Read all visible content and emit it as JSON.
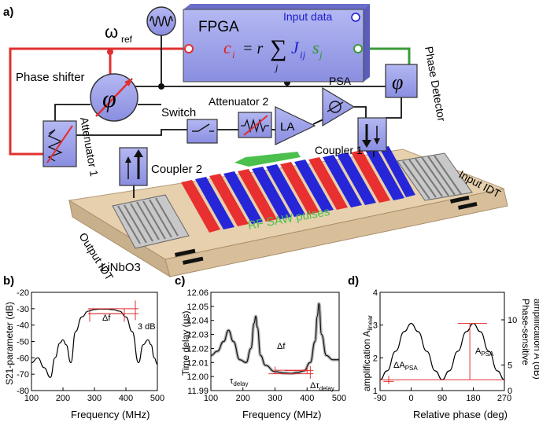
{
  "panel_labels": {
    "a": "a)",
    "b": "b)",
    "c": "c)",
    "d": "d)"
  },
  "schematic": {
    "fpga": {
      "title": "FPGA",
      "input_data": "Input data",
      "eq_c": "c",
      "eq_ci": "i",
      "eq_mid": "= r",
      "eq_sum": "∑",
      "eq_j": "j",
      "eq_J": "J",
      "eq_Jij": "ij",
      "eq_s": "s",
      "eq_sj": "j"
    },
    "omega_ref": "ω",
    "omega_ref_sub": "ref",
    "phase_shifter": "Phase shifter",
    "phase_detector": "Phase Detector",
    "psa": "PSA",
    "switch": "Switch",
    "attenuator2": "Attenuator 2",
    "attenuator1": "Attenuator 1",
    "la": "LA",
    "coupler1": "Coupler 1",
    "coupler2": "Coupler 2",
    "output_idt": "Output IDT",
    "input_idt": "Input IDT",
    "rf_saw": "RF SAW pulses",
    "substrate": "LiNbO3",
    "phi_symbol": "φ",
    "colors": {
      "box": "#9a9ee8",
      "red_line": "#e03030",
      "green_line": "#3a9a3a",
      "substrate": "#e8d2b0",
      "red_pulse": "#ee3030",
      "blue_pulse": "#2a2ae0"
    }
  },
  "charts": {
    "b": {
      "ylabel": "S21-parameter (dB)",
      "xlabel": "Frequency (MHz)",
      "ann_df": "Δf",
      "ann_3db": "3 dB"
    },
    "c": {
      "ylabel": "Time delay (μs)",
      "xlabel": "Frequency (MHz)",
      "ann_df": "Δf",
      "ann_tau": "τ",
      "ann_tau_sub": "delay",
      "ann_dtau": "Δτ",
      "ann_dtau_sub": "delay"
    },
    "d": {
      "ylabel_left": "amplification A",
      "ylabel_left_sub": "linear",
      "ylabel_right1": "Phase-sensitive",
      "ylabel_right2": "amplification A (dB)",
      "xlabel": "Relative phase (deg)",
      "ann_dapsa": "ΔA",
      "ann_dapsa_sub": "PSA",
      "ann_apsa": "A",
      "ann_apsa_sub": "PSA"
    }
  },
  "chart_data": [
    {
      "type": "line",
      "title": "",
      "xlabel": "Frequency (MHz)",
      "ylabel": "S21-parameter (dB)",
      "xlim": [
        100,
        500
      ],
      "ylim": [
        -80,
        -20
      ],
      "xticks": [
        "100",
        "200",
        "300",
        "400",
        "500"
      ],
      "yticks": [
        "-80",
        "-70",
        "-60",
        "-50",
        "-40",
        "-30",
        "-20"
      ],
      "x": [
        100,
        120,
        140,
        160,
        175,
        190,
        200,
        210,
        225,
        240,
        260,
        280,
        300,
        320,
        340,
        360,
        380,
        400,
        420,
        440,
        455,
        470,
        480,
        490,
        500
      ],
      "y": [
        -63,
        -60,
        -66,
        -72,
        -60,
        -51,
        -49,
        -52,
        -63,
        -44,
        -35,
        -31.5,
        -30.5,
        -30.2,
        -30.3,
        -30.6,
        -31.5,
        -35,
        -44,
        -63,
        -52,
        -49,
        -52,
        -60,
        -64
      ]
    },
    {
      "type": "line",
      "title": "",
      "xlabel": "Frequency (MHz)",
      "ylabel": "Time delay (μs)",
      "xlim": [
        100,
        500
      ],
      "ylim": [
        11.99,
        12.06
      ],
      "xticks": [
        "100",
        "200",
        "300",
        "400",
        "500"
      ],
      "yticks": [
        "11.99",
        "12.00",
        "12.01",
        "12.02",
        "12.03",
        "12.04",
        "12.05",
        "12.06"
      ],
      "x": [
        100,
        120,
        140,
        155,
        170,
        190,
        210,
        225,
        235,
        240,
        245,
        255,
        270,
        300,
        330,
        350,
        370,
        390,
        410,
        425,
        432,
        437,
        445,
        460,
        480,
        500
      ],
      "y": [
        12.015,
        12.018,
        12.025,
        12.033,
        12.025,
        12.012,
        12.01,
        12.02,
        12.038,
        12.043,
        12.035,
        12.015,
        12.008,
        12.0035,
        12.0025,
        12.0022,
        12.0028,
        12.004,
        12.01,
        12.025,
        12.043,
        12.052,
        12.03,
        12.015,
        12.012,
        12.012
      ]
    },
    {
      "type": "line",
      "title": "",
      "xlabel": "Relative phase (deg)",
      "ylabel": "amplification A linear",
      "xlim": [
        -90,
        270
      ],
      "ylim": [
        1,
        4
      ],
      "xticks": [
        "-90",
        "0",
        "90",
        "180",
        "270"
      ],
      "yticks": [
        "1",
        "2",
        "3",
        "4"
      ],
      "y2ticks": [
        "0",
        "5",
        "10"
      ],
      "x": [
        -90,
        -70,
        -45,
        -20,
        0,
        20,
        45,
        70,
        90,
        110,
        135,
        160,
        180,
        200,
        225,
        250,
        270
      ],
      "y": [
        1.33,
        1.6,
        2.2,
        2.8,
        3.05,
        2.8,
        2.2,
        1.6,
        1.33,
        1.6,
        2.2,
        2.8,
        3.05,
        2.8,
        2.2,
        1.6,
        1.33
      ]
    }
  ]
}
